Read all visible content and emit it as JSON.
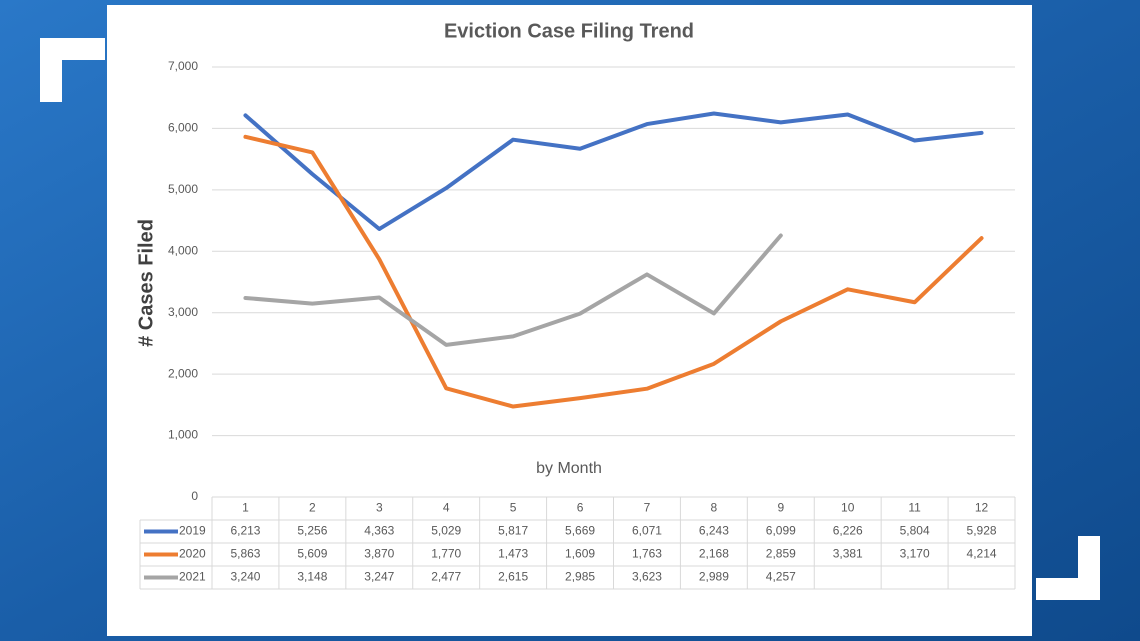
{
  "chart_data": {
    "type": "line",
    "title": "Eviction Case Filing Trend",
    "x_label": "by Month",
    "y_label": "# Cases Filed",
    "categories": [
      "1",
      "2",
      "3",
      "4",
      "5",
      "6",
      "7",
      "8",
      "9",
      "10",
      "11",
      "12"
    ],
    "ylim": [
      0,
      7000
    ],
    "yticks": [
      0,
      {
        "value": 1000,
        "label": "1,000"
      },
      {
        "value": 2000,
        "label": "2,000"
      },
      {
        "value": 3000,
        "label": "3,000"
      },
      {
        "value": 4000,
        "label": "4,000"
      },
      {
        "value": 5000,
        "label": "5,000"
      },
      {
        "value": 6000,
        "label": "6,000"
      },
      {
        "value": 7000,
        "label": "7,000"
      }
    ],
    "grid": true,
    "series": [
      {
        "name": "2019",
        "color": "#4472c4",
        "values": [
          6213,
          5256,
          4363,
          5029,
          5817,
          5669,
          6071,
          6243,
          6099,
          6226,
          5804,
          5928
        ],
        "value_labels": [
          "6,213",
          "5,256",
          "4,363",
          "5,029",
          "5,817",
          "5,669",
          "6,071",
          "6,243",
          "6,099",
          "6,226",
          "5,804",
          "5,928"
        ]
      },
      {
        "name": "2020",
        "color": "#ed7d31",
        "values": [
          5863,
          5609,
          3870,
          1770,
          1473,
          1609,
          1763,
          2168,
          2859,
          3381,
          3170,
          4214
        ],
        "value_labels": [
          "5,863",
          "5,609",
          "3,870",
          "1,770",
          "1,473",
          "1,609",
          "1,763",
          "2,168",
          "2,859",
          "3,381",
          "3,170",
          "4,214"
        ]
      },
      {
        "name": "2021",
        "color": "#a5a5a5",
        "values": [
          3240,
          3148,
          3247,
          2477,
          2615,
          2985,
          3623,
          2989,
          4257,
          null,
          null,
          null
        ],
        "value_labels": [
          "3,240",
          "3,148",
          "3,247",
          "2,477",
          "2,615",
          "2,985",
          "3,623",
          "2,989",
          "4,257",
          null,
          null,
          null
        ]
      }
    ]
  }
}
